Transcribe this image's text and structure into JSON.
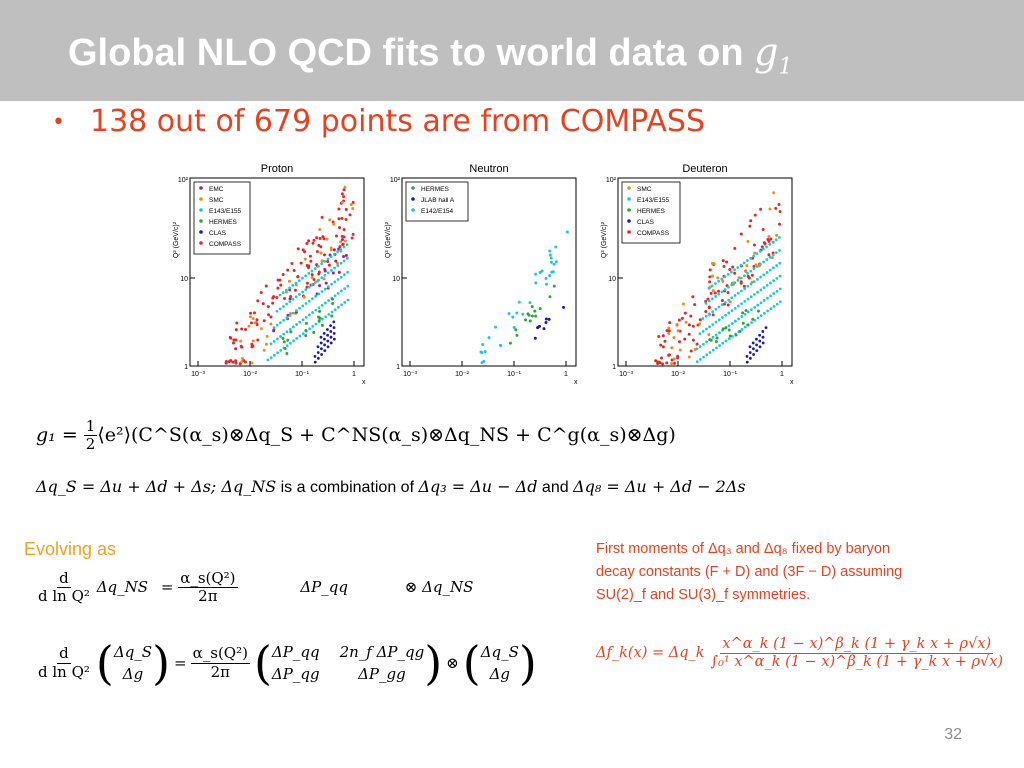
{
  "slide": {
    "title_text": "Global NLO QCD fits to world data on ",
    "title_symbol": "g",
    "title_sub": "1",
    "bullet": "138 out of 679 points are from COMPASS",
    "page_number": "32"
  },
  "plots": [
    {
      "title": "Proton",
      "legend": [
        "EMC",
        "SMC",
        "E143/E155",
        "HERMES",
        "CLAS",
        "COMPASS"
      ],
      "colors": [
        "#9a1f9a",
        "#f08a20",
        "#1fc8d0",
        "#2aa63a",
        "#1a1ab4",
        "#e52626"
      ]
    },
    {
      "title": "Neutron",
      "legend": [
        "HERMES",
        "JLAB hall A",
        "E142/E154"
      ],
      "colors": [
        "#2aa63a",
        "#1a1ab4",
        "#1fc8d0"
      ]
    },
    {
      "title": "Deuteron",
      "legend": [
        "SMC",
        "E143/E155",
        "HERMES",
        "CLAS",
        "COMPASS"
      ],
      "colors": [
        "#f08a20",
        "#1fc8d0",
        "#2aa63a",
        "#1a1ab4",
        "#e52626"
      ]
    }
  ],
  "axes": {
    "ylabel": "Q² (GeV/c)²",
    "xlabel": "x",
    "xticks": [
      "10⁻³",
      "10⁻²",
      "10⁻¹",
      "1"
    ],
    "yticks": [
      "1",
      "10"
    ],
    "ytop": "10²"
  },
  "equations": {
    "g1_lead": "g₁ = ",
    "g1_frac_num": "1",
    "g1_frac_den": "2",
    "g1_rest": "⟨e²⟩(C^S(α_s)⊗Δq_S + C^NS(α_s)⊗Δq_NS + C^g(α_s)⊗Δg)",
    "line2_math": "Δq_S = Δu + Δd + Δs; Δq_NS",
    "line2_text": " is a combination of ",
    "line2_q3": "Δq₃ = Δu − Δd",
    "line2_and": " and ",
    "line2_q8": "Δq₈ = Δu + Δd − 2Δs"
  },
  "evolve": {
    "label": "Evolving as",
    "op_num": "d",
    "op_den": "d ln Q²",
    "ns_target": "Δq_NS",
    "alpha_num": "α_s(Q²)",
    "alpha_den": "2π",
    "ns_kernel": "ΔP_qq",
    "otimes_term": "⊗  Δq_NS",
    "vec_top": "Δq_S",
    "vec_bot": "Δg",
    "m11": "ΔP_qq",
    "m12": "2n_f ΔP_qg",
    "m21": "ΔP_qg",
    "m22": "ΔP_gg"
  },
  "note": {
    "line1": "First moments of Δq₃ and Δq₈ fixed by baryon",
    "line2": "decay constants (F + D) and (3F − D) assuming",
    "line3": "SU(2)_f and SU(3)_f symmetries.",
    "formula_lhs": "Δf_k(x) = Δq_k",
    "formula_num": "x^α_k (1 − x)^β_k (1 + γ_k x + ρ√x)",
    "formula_den": "∫₀¹ x^α_k (1 − x)^β_k (1 + γ_k x + ρ√x)"
  }
}
